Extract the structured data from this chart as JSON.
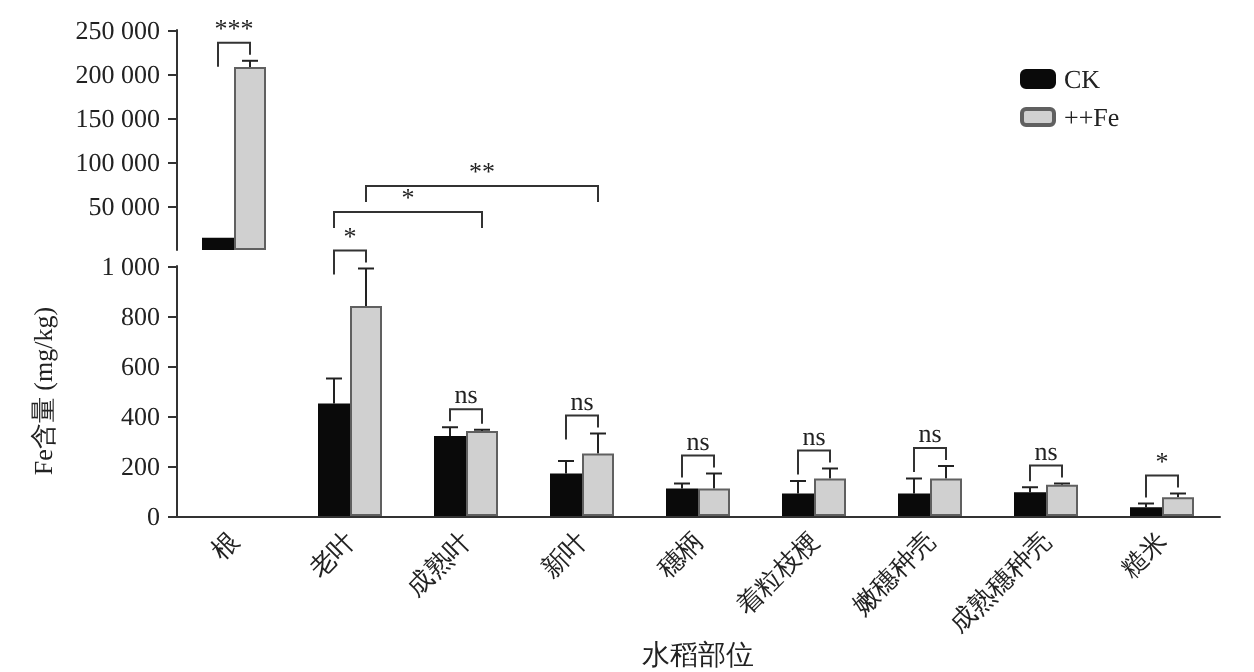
{
  "chart_data": [
    {
      "type": "bar",
      "categories": [
        null
      ],
      "series": [
        {
          "name": "CK",
          "color": "#0a0a0a",
          "values": [
            14000
          ]
        },
        {
          "name": "++Fe",
          "color": "#d0d0d0",
          "values": [
            208000
          ],
          "errors": [
            [
              208000,
              215000
            ]
          ]
        }
      ],
      "ylim": [
        0,
        250000
      ],
      "yticks": [
        {
          "value": 50000,
          "label": "50 000"
        },
        {
          "value": 100000,
          "label": "100 000"
        },
        {
          "value": 150000,
          "label": "150 000"
        },
        {
          "value": 200000,
          "label": "200 000"
        },
        {
          "value": 250000,
          "label": "250 000"
        }
      ],
      "legend": "top right",
      "tick_labels": "y",
      "annotations": [
        "***"
      ]
    },
    {
      "type": "bar",
      "categories": [
        "根",
        "老叶",
        "成熟叶",
        "新叶",
        "穗柄",
        "着粒枝梗",
        "嫩穗种壳",
        "成熟穗种壳",
        "糙米"
      ],
      "series": [
        {
          "color": "#0a0a0a",
          "values": [
            null,
            450,
            320,
            170,
            110,
            90,
            90,
            95,
            35
          ],
          "errors": [
            null,
            [
              450,
              550
            ],
            [
              320,
              355
            ],
            [
              170,
              220
            ],
            [
              110,
              130
            ],
            [
              90,
              140
            ],
            [
              90,
              150
            ],
            [
              95,
              115
            ],
            [
              35,
              50
            ]
          ]
        },
        {
          "color": "#d0d0d0",
          "values": [
            null,
            840,
            340,
            250,
            110,
            150,
            150,
            125,
            75
          ],
          "errors": [
            null,
            [
              840,
              990
            ],
            [
              340,
              345
            ],
            [
              250,
              330
            ],
            [
              110,
              170
            ],
            [
              150,
              190
            ],
            [
              150,
              200
            ],
            [
              125,
              130
            ],
            [
              75,
              90
            ]
          ]
        }
      ],
      "ylim": [
        0,
        1000
      ],
      "yticks": [
        0,
        200,
        400,
        600,
        800,
        {
          "value": 1000,
          "label": "1 000"
        }
      ],
      "xlabel": "水稻部位",
      "ylabel": "Fe含量 (mg/kg)",
      "annotations": [
        "*",
        "*",
        "**",
        "ns",
        "ns",
        "ns",
        "ns",
        "ns",
        "ns",
        "*"
      ]
    }
  ]
}
